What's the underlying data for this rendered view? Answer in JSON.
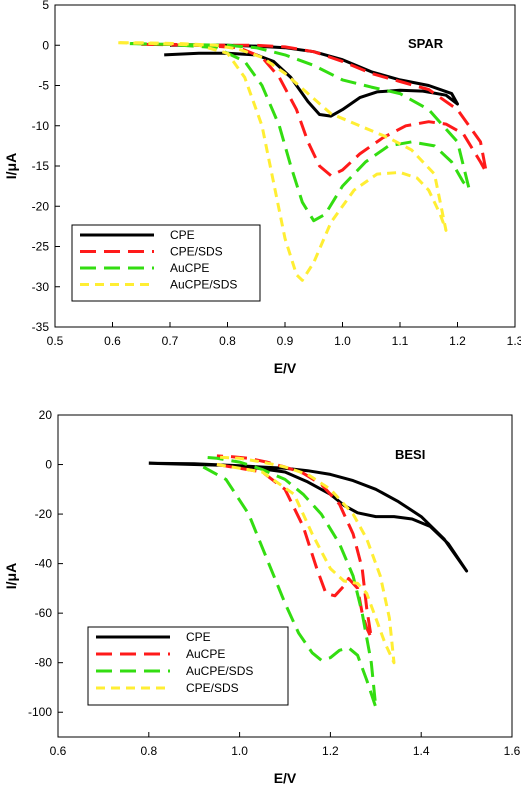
{
  "chart_data": [
    {
      "type": "line",
      "panel_label": "SPAR",
      "xlabel": "E/V",
      "ylabel": "I/μA",
      "xlim": [
        0.5,
        1.3
      ],
      "ylim": [
        -35,
        5
      ],
      "xticks": [
        "0.5",
        "0.6",
        "0.7",
        "0.8",
        "0.9",
        "1.0",
        "1.1",
        "1.2",
        "1.3"
      ],
      "yticks": [
        "5",
        "0",
        "-5",
        "-10",
        "-15",
        "-20",
        "-25",
        "-30",
        "-35"
      ],
      "legend_position": "bottom-left",
      "series": [
        {
          "name": "CPE",
          "color": "#000000",
          "dash": "solid",
          "x": [
            0.69,
            0.75,
            0.8,
            0.85,
            0.88,
            0.91,
            0.94,
            0.96,
            0.98,
            1.0,
            1.03,
            1.06,
            1.1,
            1.14,
            1.18,
            1.2,
            1.19,
            1.15,
            1.1,
            1.05,
            1.0,
            0.95,
            0.9,
            0.85,
            0.8,
            0.75,
            0.7
          ],
          "y": [
            -1.2,
            -1.0,
            -1.0,
            -1.2,
            -2.0,
            -4.0,
            -7.0,
            -8.6,
            -8.8,
            -8.0,
            -6.5,
            -5.8,
            -5.6,
            -5.7,
            -6.2,
            -7.3,
            -6.0,
            -5.0,
            -4.3,
            -3.3,
            -1.8,
            -0.8,
            -0.3,
            -0.1,
            0.0,
            0.0,
            0.0
          ]
        },
        {
          "name": "CPE/SDS",
          "color": "#ff1a1a",
          "dash": "long",
          "x": [
            0.66,
            0.75,
            0.82,
            0.86,
            0.89,
            0.92,
            0.94,
            0.96,
            0.98,
            1.0,
            1.03,
            1.07,
            1.11,
            1.15,
            1.18,
            1.21,
            1.24,
            1.25,
            1.24,
            1.2,
            1.15,
            1.1,
            1.05,
            1.0,
            0.95,
            0.9,
            0.85,
            0.8,
            0.7,
            0.65
          ],
          "y": [
            0.1,
            0.0,
            -0.3,
            -1.5,
            -4.0,
            -8.0,
            -12.0,
            -15.0,
            -16.2,
            -15.5,
            -13.5,
            -11.5,
            -10.0,
            -9.5,
            -9.8,
            -11.0,
            -14.5,
            -15.8,
            -12.0,
            -8.0,
            -5.5,
            -4.5,
            -3.5,
            -2.0,
            -0.8,
            -0.2,
            0.0,
            0.0,
            0.1,
            0.1
          ]
        },
        {
          "name": "AuCPE",
          "color": "#33dd11",
          "dash": "long",
          "x": [
            0.63,
            0.7,
            0.78,
            0.83,
            0.86,
            0.89,
            0.91,
            0.93,
            0.95,
            0.97,
            1.0,
            1.04,
            1.08,
            1.12,
            1.16,
            1.19,
            1.21,
            1.22,
            1.2,
            1.15,
            1.1,
            1.05,
            1.0,
            0.95,
            0.9,
            0.85,
            0.8,
            0.7,
            0.63
          ],
          "y": [
            0.2,
            0.1,
            -0.3,
            -2.0,
            -5.0,
            -10.0,
            -15.0,
            -19.5,
            -21.8,
            -21.0,
            -17.5,
            -14.5,
            -12.5,
            -12.0,
            -12.5,
            -14.5,
            -17.0,
            -17.8,
            -12.0,
            -8.0,
            -6.0,
            -5.2,
            -4.3,
            -2.5,
            -1.2,
            -0.3,
            0.0,
            0.1,
            0.2
          ]
        },
        {
          "name": "AuCPE/SDS",
          "color": "#ffee33",
          "dash": "short",
          "x": [
            0.61,
            0.68,
            0.75,
            0.8,
            0.83,
            0.86,
            0.88,
            0.9,
            0.92,
            0.93,
            0.95,
            0.98,
            1.02,
            1.06,
            1.1,
            1.13,
            1.15,
            1.17,
            1.18,
            1.16,
            1.12,
            1.08,
            1.03,
            0.98,
            0.94,
            0.9,
            0.86,
            0.82,
            0.78,
            0.72,
            0.65,
            0.61
          ],
          "y": [
            0.3,
            0.2,
            0.0,
            -1.0,
            -4.0,
            -10.0,
            -17.0,
            -24.0,
            -28.5,
            -29.2,
            -27.0,
            -22.0,
            -18.0,
            -16.0,
            -15.8,
            -16.5,
            -18.0,
            -21.0,
            -23.0,
            -16.0,
            -13.0,
            -11.5,
            -10.0,
            -8.5,
            -6.0,
            -3.5,
            -1.5,
            -0.5,
            0.0,
            0.2,
            0.3,
            0.3
          ]
        }
      ]
    },
    {
      "type": "line",
      "panel_label": "BESI",
      "xlabel": "E/V",
      "ylabel": "I/μA",
      "xlim": [
        0.6,
        1.6
      ],
      "ylim": [
        -110,
        20
      ],
      "xticks": [
        "0.6",
        "0.8",
        "1.0",
        "1.2",
        "1.4",
        "1.6"
      ],
      "yticks": [
        "20",
        "0",
        "-20",
        "-40",
        "-60",
        "-80",
        "-100"
      ],
      "legend_position": "bottom-left",
      "series": [
        {
          "name": "CPE",
          "color": "#000000",
          "dash": "solid",
          "x": [
            0.8,
            0.9,
            1.0,
            1.1,
            1.15,
            1.2,
            1.23,
            1.26,
            1.3,
            1.34,
            1.38,
            1.42,
            1.46,
            1.5,
            1.45,
            1.4,
            1.35,
            1.3,
            1.25,
            1.2,
            1.15,
            1.1,
            1.0,
            0.9,
            0.8
          ],
          "y": [
            0.5,
            0.3,
            -0.5,
            -3.0,
            -7.0,
            -12.0,
            -16.5,
            -19.5,
            -21.0,
            -21.0,
            -22.0,
            -25.0,
            -32.0,
            -43.0,
            -30.0,
            -21.0,
            -15.0,
            -10.0,
            -6.5,
            -4.0,
            -2.5,
            -1.5,
            -0.5,
            0.0,
            0.5
          ]
        },
        {
          "name": "AuCPE",
          "color": "#ff1a1a",
          "dash": "long",
          "x": [
            0.95,
            1.05,
            1.1,
            1.14,
            1.17,
            1.19,
            1.21,
            1.23,
            1.24,
            1.26,
            1.27,
            1.28,
            1.29,
            1.28,
            1.27,
            1.25,
            1.22,
            1.18,
            1.14,
            1.1,
            1.06,
            1.02,
            0.98,
            0.95
          ],
          "y": [
            0.0,
            -3.0,
            -10.0,
            -25.0,
            -42.0,
            -52.0,
            -53.0,
            -49.0,
            -46.0,
            -50.0,
            -60.0,
            -66.0,
            -70.0,
            -58.0,
            -42.0,
            -28.0,
            -16.0,
            -8.0,
            -3.5,
            -1.0,
            1.0,
            2.5,
            3.2,
            3.5
          ]
        },
        {
          "name": "AuCPE/SDS",
          "color": "#33dd11",
          "dash": "long",
          "x": [
            0.92,
            0.97,
            1.02,
            1.06,
            1.1,
            1.13,
            1.16,
            1.18,
            1.2,
            1.22,
            1.24,
            1.26,
            1.28,
            1.3,
            1.29,
            1.27,
            1.25,
            1.22,
            1.18,
            1.14,
            1.1,
            1.05,
            1.0,
            0.95,
            0.92
          ],
          "y": [
            -1.0,
            -6.0,
            -20.0,
            -38.0,
            -56.0,
            -68.0,
            -76.0,
            -79.0,
            -78.0,
            -75.0,
            -74.0,
            -77.0,
            -87.0,
            -98.0,
            -80.0,
            -60.0,
            -45.0,
            -32.0,
            -20.0,
            -12.0,
            -6.0,
            -2.0,
            1.0,
            2.5,
            3.0
          ]
        },
        {
          "name": "CPE/SDS",
          "color": "#ffee33",
          "dash": "short",
          "x": [
            0.95,
            1.05,
            1.12,
            1.16,
            1.2,
            1.23,
            1.26,
            1.28,
            1.3,
            1.32,
            1.34,
            1.33,
            1.31,
            1.28,
            1.25,
            1.2,
            1.15,
            1.1,
            1.05,
            1.0,
            0.95
          ],
          "y": [
            0.0,
            -3.0,
            -12.0,
            -28.0,
            -42.0,
            -47.0,
            -48.0,
            -52.0,
            -62.0,
            -72.0,
            -80.0,
            -62.0,
            -45.0,
            -30.0,
            -20.0,
            -10.0,
            -4.0,
            -1.0,
            1.0,
            2.5,
            3.0
          ]
        }
      ]
    }
  ]
}
